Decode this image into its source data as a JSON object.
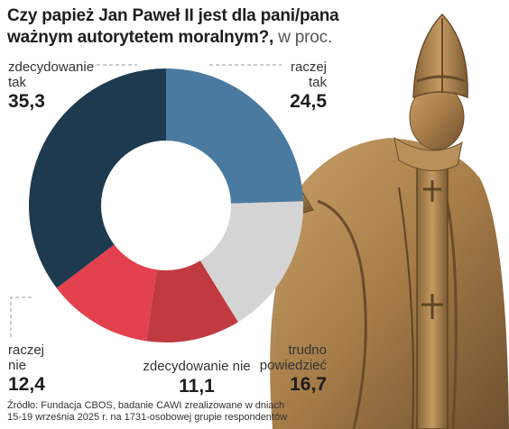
{
  "title": {
    "main": "Czy papież Jan Paweł II jest dla pani/pana ważnym autorytetem moralnym?,",
    "unit": " w proc."
  },
  "chart_data": {
    "type": "pie",
    "title": "Czy papież Jan Paweł II jest dla pani/pana ważnym autorytetem moralnym?",
    "unit": "w proc.",
    "categories": [
      "zdecydowanie tak",
      "raczej tak",
      "trudno powiedzieć",
      "zdecydowanie nie",
      "raczej nie"
    ],
    "values": [
      35.3,
      24.5,
      16.7,
      11.1,
      12.4
    ],
    "slices": [
      {
        "label_lines": [
          "zdecydowanie",
          "tak"
        ],
        "value": 35.3,
        "value_text": "35,3",
        "color": "#1e3a4f"
      },
      {
        "label_lines": [
          "raczej",
          "tak"
        ],
        "value": 24.5,
        "value_text": "24,5",
        "color": "#4a7aa0"
      },
      {
        "label_lines": [
          "trudno",
          "powiedzieć"
        ],
        "value": 16.7,
        "value_text": "16,7",
        "color": "#d4d4d4"
      },
      {
        "label_lines": [
          "zdecydowanie nie"
        ],
        "value": 11.1,
        "value_text": "11,1",
        "color": "#c13a40"
      },
      {
        "label_lines": [
          "raczej",
          "nie"
        ],
        "value": 12.4,
        "value_text": "12,4",
        "color": "#e2414d"
      }
    ],
    "order_note_only_for_drawing": null
  },
  "source": "Źródło: Fundacja CBOS, badanie CAWI zrealizowane w dniach 15-19 września 2025 r. na 1731-osobowej grupie respondentów",
  "illustration": {
    "name": "pope-statue",
    "color": "#a77d48"
  }
}
